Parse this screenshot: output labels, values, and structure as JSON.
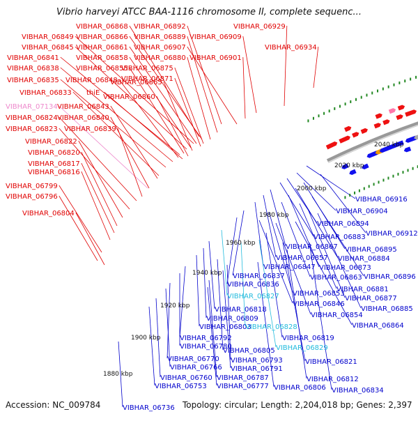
{
  "header": {
    "title": "Vibrio harveyi ATCC BAA-1116 chromosome II, complete sequenc..."
  },
  "footer": {
    "accession": "Accession: NC_009784",
    "topology": "Topology: circular; Length: 2,204,018 bp; Genes: 2,397"
  },
  "colors": {
    "forward_label": "#e00000",
    "reverse_label": "#0000cc",
    "rna_label_pink": "#ee88cc",
    "rna_label_cyan": "#22bbdd",
    "forward_arrow": "#ee1111",
    "reverse_arrow": "#1111ee",
    "backbone": "#888888",
    "tick_dot": "#228822"
  },
  "kbp_labels": [
    "1880 kbp",
    "1900 kbp",
    "1920 kbp",
    "1940 kbp",
    "1960 kbp",
    "1980 kbp",
    "2000 kbp",
    "2020 kbp",
    "2040 kbp"
  ],
  "left_labels": [
    {
      "text": "VIBHAR_06868",
      "color": "red"
    },
    {
      "text": "VIBHAR_06892",
      "color": "red"
    },
    {
      "text": "VIBHAR_06929",
      "color": "red"
    },
    {
      "text": "VIBHAR_06849",
      "color": "red"
    },
    {
      "text": "VIBHAR_06866",
      "color": "red"
    },
    {
      "text": "VIBHAR_06889",
      "color": "red"
    },
    {
      "text": "VIBHAR_06909",
      "color": "red"
    },
    {
      "text": "VIBHAR_06845",
      "color": "red"
    },
    {
      "text": "VIBHAR_06861",
      "color": "red"
    },
    {
      "text": "VIBHAR_06907",
      "color": "red"
    },
    {
      "text": "VIBHAR_06934",
      "color": "red"
    },
    {
      "text": "VIBHAR_06841",
      "color": "red"
    },
    {
      "text": "VIBHAR_06858",
      "color": "red"
    },
    {
      "text": "VIBHAR_06880",
      "color": "red"
    },
    {
      "text": "VIBHAR_06901",
      "color": "red"
    },
    {
      "text": "VIBHAR_06838",
      "color": "red"
    },
    {
      "text": "VIBHAR_06855",
      "color": "red"
    },
    {
      "text": "VIBHAR_06875",
      "color": "red"
    },
    {
      "text": "VIBHAR_06871",
      "color": "red"
    },
    {
      "text": "VIBHAR_06835",
      "color": "red"
    },
    {
      "text": "VIBHAR_06848",
      "color": "red"
    },
    {
      "text": "VIBHAR_06865",
      "color": "red"
    },
    {
      "text": "VIBHAR_06833",
      "color": "red"
    },
    {
      "text": "thiE",
      "color": "red"
    },
    {
      "text": "VIBHAR_06860",
      "color": "red"
    },
    {
      "text": "VIBHAR_07134",
      "color": "pink"
    },
    {
      "text": "VIBHAR_06843",
      "color": "red"
    },
    {
      "text": "VIBHAR_06824",
      "color": "red"
    },
    {
      "text": "VIBHAR_06840",
      "color": "red"
    },
    {
      "text": "VIBHAR_06823",
      "color": "red"
    },
    {
      "text": "VIBHAR_06839",
      "color": "red"
    },
    {
      "text": "VIBHAR_06822",
      "color": "red"
    },
    {
      "text": "VIBHAR_06820",
      "color": "red"
    },
    {
      "text": "VIBHAR_06817",
      "color": "red"
    },
    {
      "text": "VIBHAR_06816",
      "color": "red"
    },
    {
      "text": "VIBHAR_06799",
      "color": "red"
    },
    {
      "text": "VIBHAR_06796",
      "color": "red"
    },
    {
      "text": "VIBHAR_06804",
      "color": "red"
    }
  ],
  "right_labels": [
    {
      "text": "VIBHAR_06916",
      "color": "blue"
    },
    {
      "text": "VIBHAR_06904",
      "color": "blue"
    },
    {
      "text": "VIBHAR_06894",
      "color": "blue"
    },
    {
      "text": "VIBHAR_06912",
      "color": "blue"
    },
    {
      "text": "VIBHAR_06883",
      "color": "blue"
    },
    {
      "text": "VIBHAR_06867",
      "color": "blue"
    },
    {
      "text": "VIBHAR_06895",
      "color": "blue"
    },
    {
      "text": "VIBHAR_06857",
      "color": "blue"
    },
    {
      "text": "VIBHAR_06884",
      "color": "blue"
    },
    {
      "text": "VIBHAR_06847",
      "color": "blue"
    },
    {
      "text": "VIBHAR_06873",
      "color": "blue"
    },
    {
      "text": "VIBHAR_06837",
      "color": "blue"
    },
    {
      "text": "VIBHAR_06863",
      "color": "blue"
    },
    {
      "text": "VIBHAR_06896",
      "color": "blue"
    },
    {
      "text": "VIBHAR_06836",
      "color": "blue"
    },
    {
      "text": "VIBHAR_06881",
      "color": "blue"
    },
    {
      "text": "VIBHAR_06853",
      "color": "blue"
    },
    {
      "text": "VIBHAR_06877",
      "color": "blue"
    },
    {
      "text": "VIBHAR_06827",
      "color": "cyan"
    },
    {
      "text": "VIBHAR_06846",
      "color": "blue"
    },
    {
      "text": "VIBHAR_06885",
      "color": "blue"
    },
    {
      "text": "VIBHAR_06818",
      "color": "blue"
    },
    {
      "text": "VIBHAR_06854",
      "color": "blue"
    },
    {
      "text": "VIBHAR_06809",
      "color": "blue"
    },
    {
      "text": "VIBHAR_06864",
      "color": "blue"
    },
    {
      "text": "VIBHAR_06803",
      "color": "blue"
    },
    {
      "text": "VIBHAR_06828",
      "color": "cyan"
    },
    {
      "text": "VIBHAR_06792",
      "color": "blue"
    },
    {
      "text": "VIBHAR_06819",
      "color": "blue"
    },
    {
      "text": "VIBHAR_06780",
      "color": "blue"
    },
    {
      "text": "VIBHAR_06829",
      "color": "cyan"
    },
    {
      "text": "VIBHAR_06805",
      "color": "blue"
    },
    {
      "text": "VIBHAR_06770",
      "color": "blue"
    },
    {
      "text": "VIBHAR_06793",
      "color": "blue"
    },
    {
      "text": "VIBHAR_06821",
      "color": "blue"
    },
    {
      "text": "VIBHAR_06766",
      "color": "blue"
    },
    {
      "text": "VIBHAR_06791",
      "color": "blue"
    },
    {
      "text": "VIBHAR_06760",
      "color": "blue"
    },
    {
      "text": "VIBHAR_06787",
      "color": "blue"
    },
    {
      "text": "VIBHAR_06812",
      "color": "blue"
    },
    {
      "text": "VIBHAR_06753",
      "color": "blue"
    },
    {
      "text": "VIBHAR_06777",
      "color": "blue"
    },
    {
      "text": "VIBHAR_06806",
      "color": "blue"
    },
    {
      "text": "VIBHAR_06834",
      "color": "blue"
    },
    {
      "text": "VIBHAR_06736",
      "color": "blue"
    }
  ]
}
